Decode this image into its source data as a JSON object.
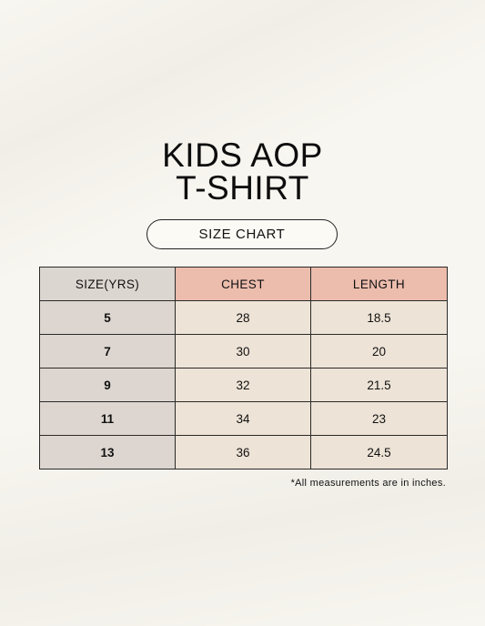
{
  "title_line1": "KIDS AOP",
  "title_line2": "T-SHIRT",
  "subtitle": "SIZE CHART",
  "table": {
    "headers": [
      "SIZE(YRS)",
      "CHEST",
      "LENGTH"
    ],
    "rows": [
      {
        "size": "5",
        "chest": "28",
        "length": "18.5"
      },
      {
        "size": "7",
        "chest": "30",
        "length": "20"
      },
      {
        "size": "9",
        "chest": "32",
        "length": "21.5"
      },
      {
        "size": "11",
        "chest": "34",
        "length": "23"
      },
      {
        "size": "13",
        "chest": "36",
        "length": "24.5"
      }
    ]
  },
  "footnote": "*All measurements are in inches.",
  "colors": {
    "background": "#f8f6f0",
    "size_column": "#ddd6d0",
    "header_accent": "#ecbcad",
    "value_cells": "#ede3d6"
  }
}
